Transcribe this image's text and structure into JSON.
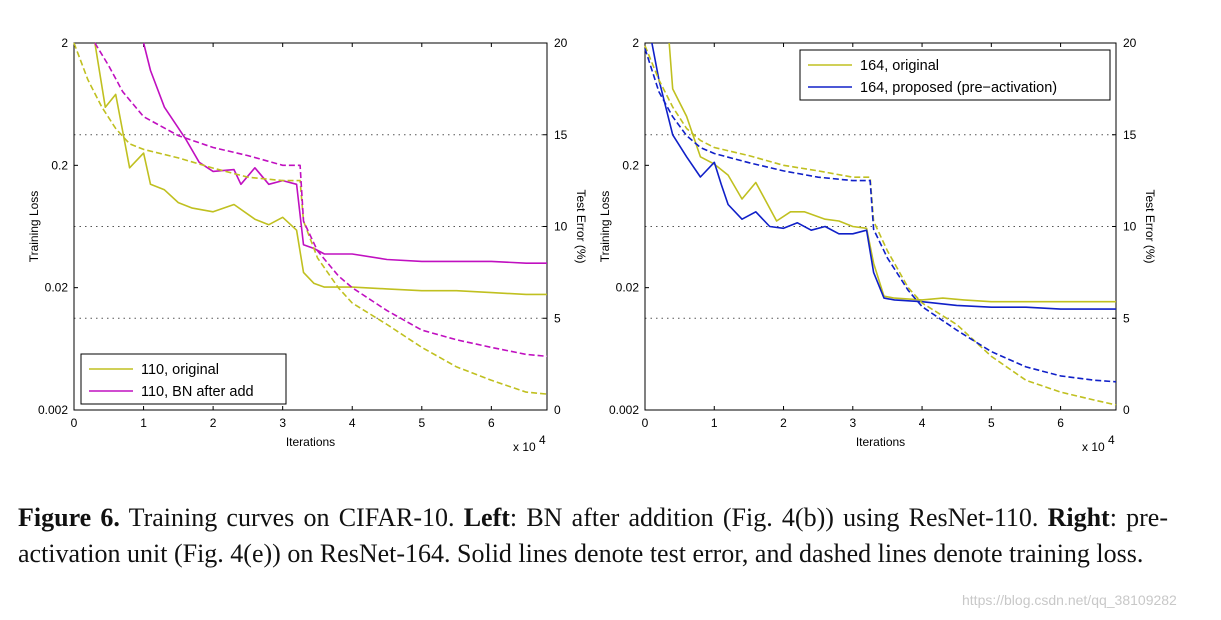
{
  "chart_data": [
    {
      "type": "line",
      "panel": "left",
      "xlabel": "Iterations",
      "xscale_label": "x 10",
      "xscale_exp": "4",
      "ylabel_left": "Training Loss",
      "ylabel_right": "Test Error (%)",
      "xlim": [
        0,
        6.8
      ],
      "ylim_left": [
        0.002,
        2
      ],
      "ylim_right": [
        0,
        20
      ],
      "x_ticks": [
        "0",
        "1",
        "2",
        "3",
        "4",
        "5",
        "6"
      ],
      "y_left_ticks": [
        "2",
        "0.2",
        "0.02",
        "0.002"
      ],
      "y_right_ticks": [
        "20",
        "15",
        "10",
        "5",
        "0"
      ],
      "grid": "dotted horizontal at 5, 10, 15 % error",
      "legend_position": "bottom-left",
      "series": [
        {
          "name": "110, original",
          "color": "#c0c020",
          "style": "solid",
          "axis": "test_error_pct",
          "x": [
            0.3,
            0.45,
            0.6,
            0.8,
            1.0,
            1.1,
            1.3,
            1.5,
            1.7,
            2.0,
            2.3,
            2.6,
            2.8,
            3.0,
            3.2,
            3.3,
            3.45,
            3.6,
            4.0,
            4.5,
            5.0,
            5.5,
            6.0,
            6.5,
            6.8
          ],
          "values": [
            20,
            16.5,
            17.2,
            13.2,
            14.0,
            12.3,
            12.0,
            11.3,
            11.0,
            10.8,
            11.2,
            10.4,
            10.1,
            10.5,
            9.8,
            7.5,
            6.9,
            6.7,
            6.7,
            6.6,
            6.5,
            6.5,
            6.4,
            6.3,
            6.3
          ]
        },
        {
          "name": "110, BN after add",
          "color": "#c010c0",
          "style": "solid",
          "axis": "test_error_pct",
          "x": [
            1.0,
            1.1,
            1.3,
            1.6,
            1.8,
            2.0,
            2.3,
            2.4,
            2.6,
            2.8,
            3.0,
            3.2,
            3.3,
            3.45,
            3.6,
            4.0,
            4.5,
            5.0,
            5.5,
            6.0,
            6.5,
            6.8
          ],
          "values": [
            20,
            18.5,
            16.5,
            14.8,
            13.5,
            13.0,
            13.1,
            12.3,
            13.2,
            12.3,
            12.5,
            12.3,
            9.0,
            8.8,
            8.5,
            8.5,
            8.2,
            8.1,
            8.1,
            8.1,
            8.0,
            8.0
          ]
        },
        {
          "name": "110, original (training loss)",
          "color": "#c0c020",
          "style": "dashed",
          "axis": "training_loss",
          "x": [
            0.0,
            0.2,
            0.4,
            0.6,
            0.8,
            1.0,
            1.5,
            2.0,
            2.5,
            3.0,
            3.25,
            3.3,
            3.5,
            3.8,
            4.0,
            4.5,
            5.0,
            5.5,
            6.0,
            6.5,
            6.8
          ],
          "values": [
            2.0,
            1.0,
            0.6,
            0.4,
            0.3,
            0.27,
            0.23,
            0.19,
            0.16,
            0.15,
            0.15,
            0.07,
            0.035,
            0.02,
            0.015,
            0.01,
            0.0065,
            0.0045,
            0.0035,
            0.0028,
            0.0027
          ]
        },
        {
          "name": "110, BN after add (training loss)",
          "color": "#c010c0",
          "style": "dashed",
          "axis": "training_loss",
          "x": [
            0.3,
            0.5,
            0.7,
            1.0,
            1.5,
            2.0,
            2.5,
            3.0,
            3.25,
            3.3,
            3.5,
            3.8,
            4.0,
            4.5,
            5.0,
            5.5,
            6.0,
            6.5,
            6.8
          ],
          "values": [
            2.0,
            1.3,
            0.8,
            0.5,
            0.35,
            0.28,
            0.24,
            0.2,
            0.2,
            0.07,
            0.04,
            0.025,
            0.02,
            0.013,
            0.009,
            0.0075,
            0.0065,
            0.0057,
            0.0055
          ]
        }
      ]
    },
    {
      "type": "line",
      "panel": "right",
      "xlabel": "Iterations",
      "xscale_label": "x 10",
      "xscale_exp": "4",
      "ylabel_left": "Training Loss",
      "ylabel_right": "Test Error (%)",
      "xlim": [
        0,
        6.8
      ],
      "ylim_left": [
        0.002,
        2
      ],
      "ylim_right": [
        0,
        20
      ],
      "x_ticks": [
        "0",
        "1",
        "2",
        "3",
        "4",
        "5",
        "6"
      ],
      "y_left_ticks": [
        "2",
        "0.2",
        "0.02",
        "0.002"
      ],
      "y_right_ticks": [
        "20",
        "15",
        "10",
        "5",
        "0"
      ],
      "grid": "dotted horizontal at 5, 10, 15 % error",
      "legend_position": "top-right",
      "series": [
        {
          "name": "164, original",
          "color": "#c0c020",
          "style": "solid",
          "axis": "test_error_pct",
          "x": [
            0.35,
            0.4,
            0.6,
            0.8,
            1.0,
            1.2,
            1.4,
            1.6,
            1.9,
            2.1,
            2.3,
            2.6,
            2.8,
            3.0,
            3.2,
            3.3,
            3.45,
            3.6,
            4.0,
            4.3,
            4.6,
            5.0,
            5.5,
            6.0,
            6.5,
            6.8
          ],
          "values": [
            20,
            17.5,
            16.0,
            13.8,
            13.4,
            12.8,
            11.5,
            12.4,
            10.3,
            10.8,
            10.8,
            10.4,
            10.3,
            10.0,
            9.9,
            8.0,
            6.2,
            6.1,
            6.0,
            6.1,
            6.0,
            5.9,
            5.9,
            5.9,
            5.9,
            5.9
          ]
        },
        {
          "name": "164, proposed (pre−activation)",
          "color": "#1020c8",
          "style": "solid",
          "axis": "test_error_pct",
          "x": [
            0.1,
            0.2,
            0.4,
            0.6,
            0.8,
            1.0,
            1.1,
            1.2,
            1.4,
            1.6,
            1.8,
            2.0,
            2.2,
            2.4,
            2.6,
            2.8,
            3.0,
            3.2,
            3.3,
            3.45,
            3.6,
            4.0,
            4.5,
            5.0,
            5.5,
            6.0,
            6.5,
            6.8
          ],
          "values": [
            20,
            18,
            15.0,
            13.8,
            12.7,
            13.5,
            12.3,
            11.2,
            10.4,
            10.8,
            10.0,
            9.9,
            10.2,
            9.8,
            10.0,
            9.6,
            9.6,
            9.8,
            7.5,
            6.1,
            6.0,
            5.9,
            5.7,
            5.6,
            5.6,
            5.5,
            5.5,
            5.5
          ]
        },
        {
          "name": "164, original (training loss)",
          "color": "#c0c020",
          "style": "dashed",
          "axis": "training_loss",
          "x": [
            0.0,
            0.2,
            0.4,
            0.6,
            0.8,
            1.0,
            1.5,
            2.0,
            2.5,
            3.0,
            3.25,
            3.3,
            3.5,
            3.8,
            4.0,
            4.5,
            5.0,
            5.5,
            6.0,
            6.5,
            6.8
          ],
          "values": [
            1.9,
            1.0,
            0.6,
            0.4,
            0.32,
            0.28,
            0.24,
            0.2,
            0.18,
            0.16,
            0.16,
            0.07,
            0.04,
            0.02,
            0.015,
            0.01,
            0.0055,
            0.0035,
            0.0028,
            0.0024,
            0.0022
          ]
        },
        {
          "name": "164, proposed (training loss)",
          "color": "#1020c8",
          "style": "dashed",
          "axis": "training_loss",
          "x": [
            0.0,
            0.2,
            0.4,
            0.6,
            0.8,
            1.0,
            1.5,
            2.0,
            2.5,
            3.0,
            3.25,
            3.3,
            3.5,
            3.8,
            4.0,
            4.5,
            5.0,
            5.5,
            6.0,
            6.5,
            6.8
          ],
          "values": [
            1.8,
            0.8,
            0.5,
            0.35,
            0.28,
            0.25,
            0.21,
            0.18,
            0.16,
            0.15,
            0.15,
            0.06,
            0.035,
            0.019,
            0.014,
            0.009,
            0.006,
            0.0045,
            0.0038,
            0.0035,
            0.0034
          ]
        }
      ]
    }
  ],
  "caption": {
    "figure_label": "Figure 6.",
    "part1": " Training curves on CIFAR-10. ",
    "left_label": "Left",
    "part2": ": BN after addition (Fig. 4(b)) using ResNet-110. ",
    "right_label": "Right",
    "part3": ": pre-activation unit (Fig. 4(e)) on ResNet-164. Solid lines denote test error, and dashed lines denote training loss."
  },
  "watermark": "https://blog.csdn.net/qq_38109282"
}
